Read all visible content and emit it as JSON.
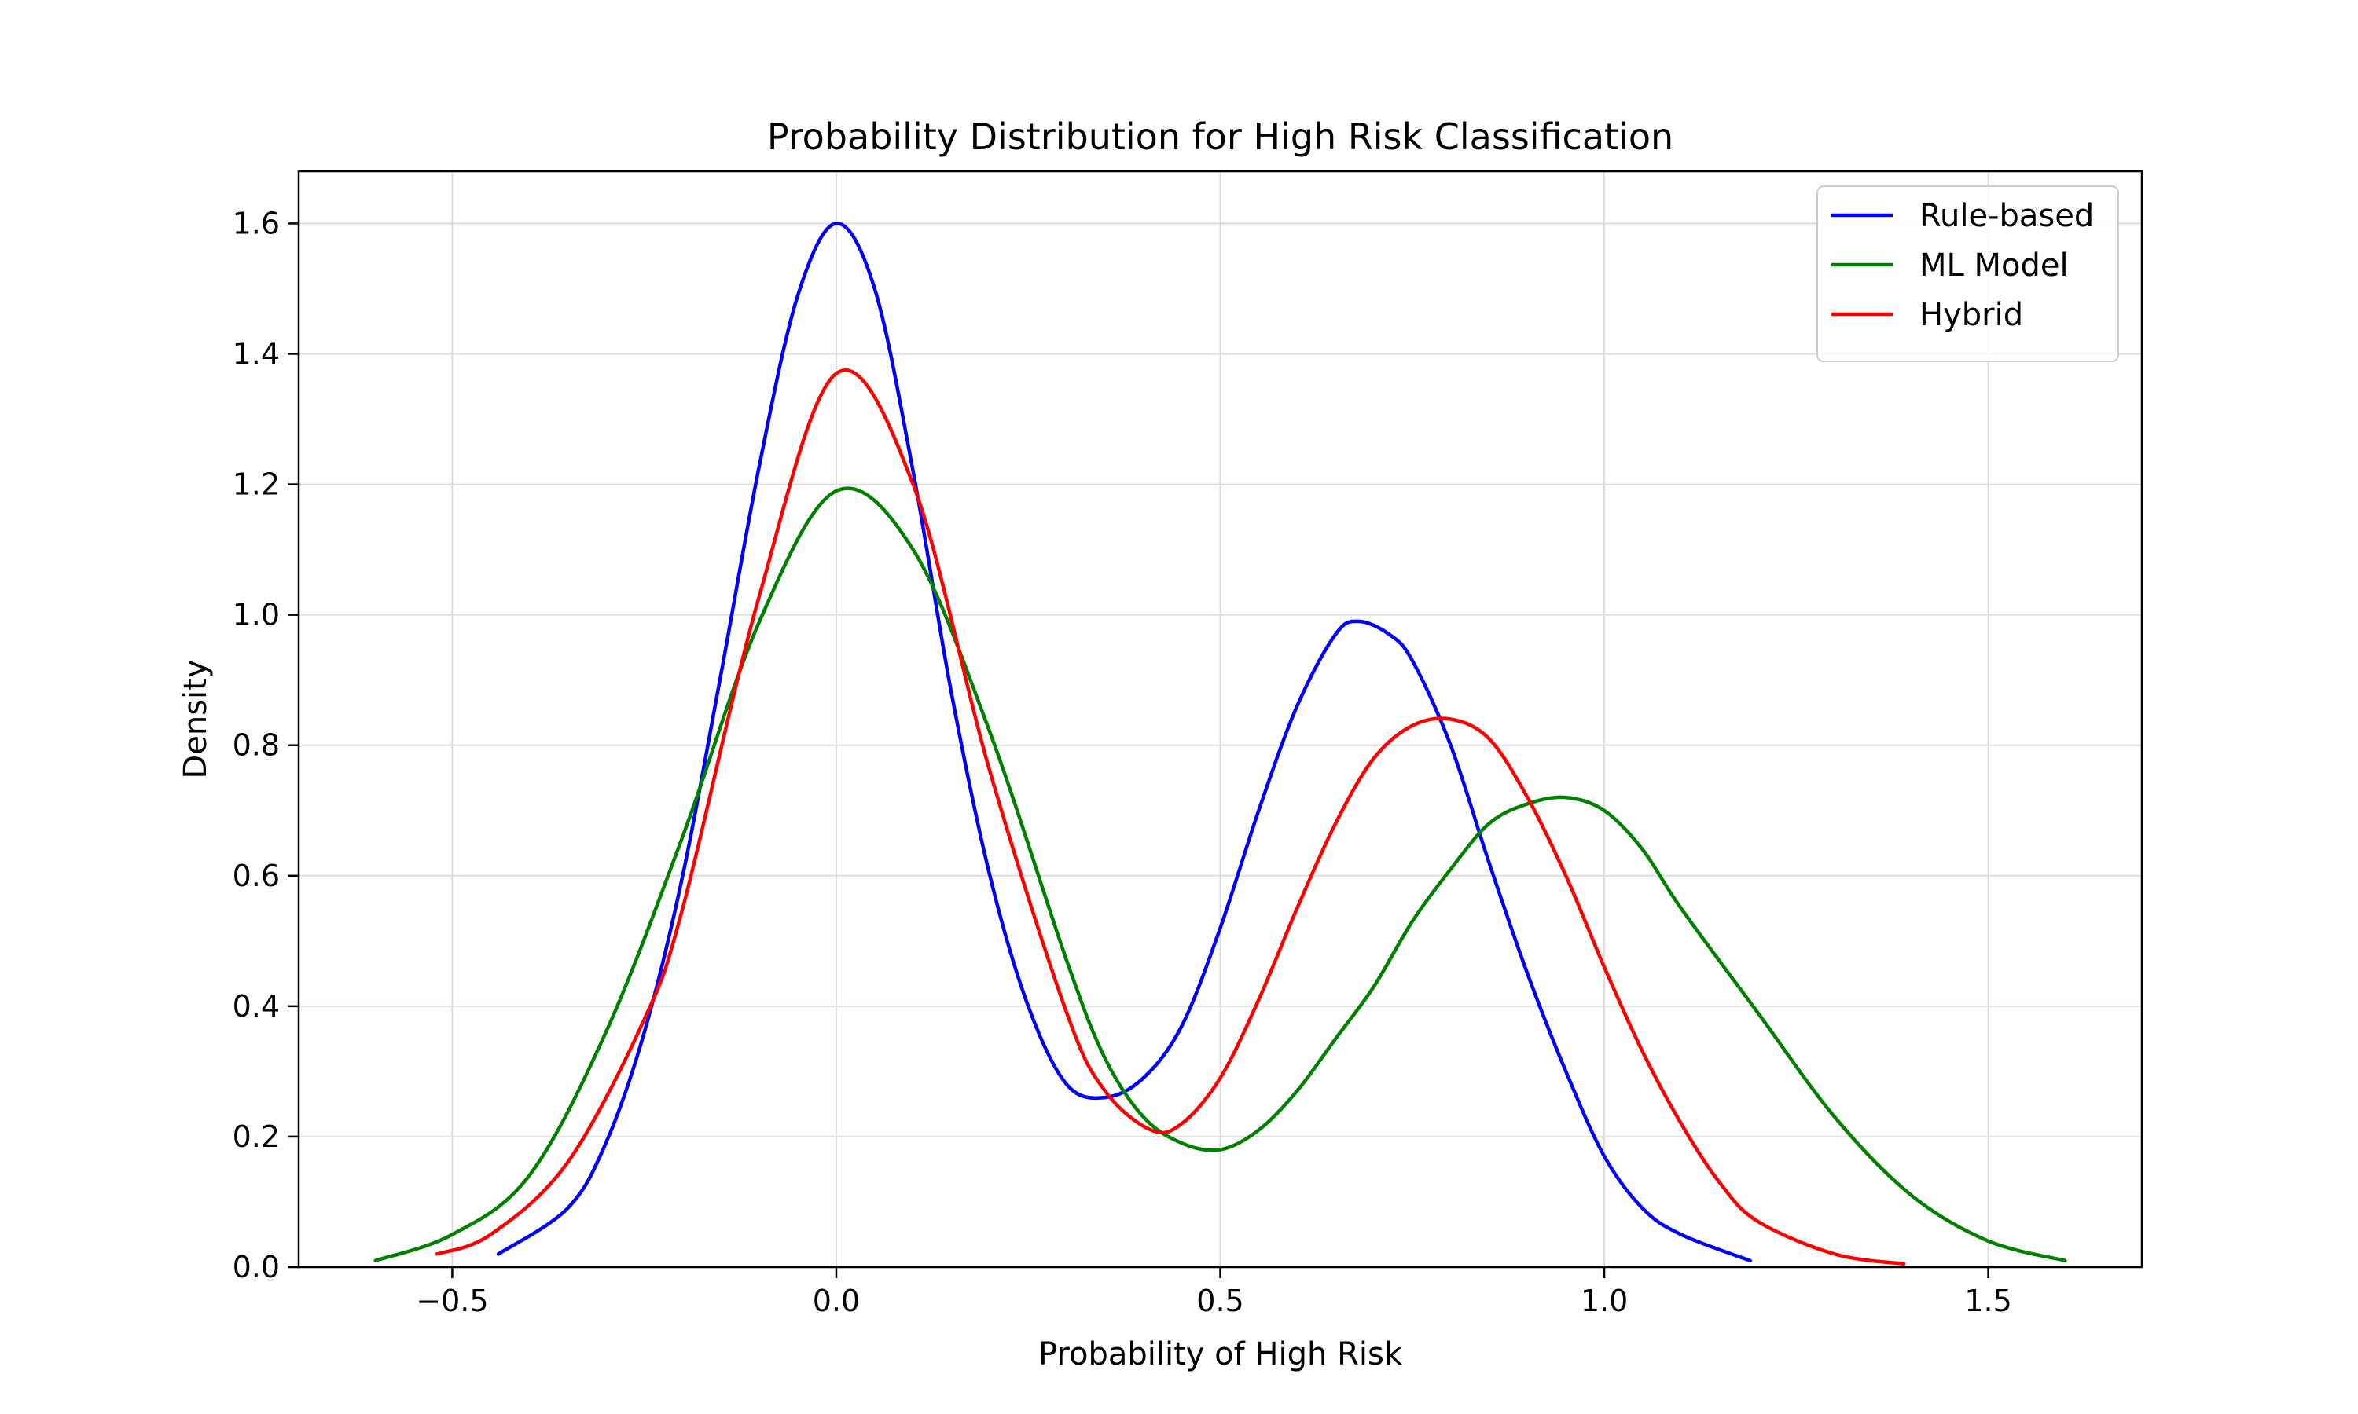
{
  "chart_data": {
    "type": "line",
    "title": "Probability Distribution for High Risk Classification",
    "xlabel": "Probability of High Risk",
    "ylabel": "Density",
    "xlim": [
      -0.7,
      1.7
    ],
    "ylim": [
      0.0,
      1.68
    ],
    "xticks": [
      -0.5,
      0.0,
      0.5,
      1.0,
      1.5
    ],
    "xtick_labels": [
      "−0.5",
      "0.0",
      "0.5",
      "1.0",
      "1.5"
    ],
    "yticks": [
      0.0,
      0.2,
      0.4,
      0.6,
      0.8,
      1.0,
      1.2,
      1.4,
      1.6
    ],
    "ytick_labels": [
      "0.0",
      "0.2",
      "0.4",
      "0.6",
      "0.8",
      "1.0",
      "1.2",
      "1.4",
      "1.6"
    ],
    "grid": true,
    "legend_position": "top-right",
    "series": [
      {
        "name": "Rule-based",
        "color": "#0000ff",
        "x": [
          -0.44,
          -0.35,
          -0.3,
          -0.25,
          -0.2,
          -0.15,
          -0.1,
          -0.05,
          0.0,
          0.05,
          0.1,
          0.15,
          0.2,
          0.25,
          0.3,
          0.35,
          0.4,
          0.45,
          0.5,
          0.55,
          0.6,
          0.65,
          0.68,
          0.72,
          0.75,
          0.8,
          0.85,
          0.9,
          0.95,
          1.0,
          1.05,
          1.1,
          1.19
        ],
        "y": [
          0.02,
          0.09,
          0.19,
          0.36,
          0.6,
          0.91,
          1.23,
          1.49,
          1.6,
          1.5,
          1.22,
          0.88,
          0.6,
          0.4,
          0.28,
          0.26,
          0.29,
          0.37,
          0.52,
          0.7,
          0.86,
          0.97,
          0.99,
          0.97,
          0.93,
          0.8,
          0.62,
          0.45,
          0.3,
          0.17,
          0.09,
          0.05,
          0.01
        ]
      },
      {
        "name": "ML Model",
        "color": "#008000",
        "x": [
          -0.6,
          -0.5,
          -0.4,
          -0.3,
          -0.2,
          -0.1,
          0.0,
          0.1,
          0.2,
          0.3,
          0.35,
          0.4,
          0.45,
          0.5,
          0.55,
          0.6,
          0.65,
          0.7,
          0.75,
          0.8,
          0.85,
          0.9,
          0.95,
          1.0,
          1.05,
          1.1,
          1.2,
          1.3,
          1.4,
          1.5,
          1.6
        ],
        "y": [
          0.01,
          0.05,
          0.14,
          0.36,
          0.66,
          0.99,
          1.19,
          1.1,
          0.82,
          0.47,
          0.32,
          0.23,
          0.19,
          0.18,
          0.21,
          0.27,
          0.35,
          0.43,
          0.53,
          0.61,
          0.68,
          0.71,
          0.72,
          0.7,
          0.64,
          0.55,
          0.39,
          0.23,
          0.11,
          0.04,
          0.01
        ]
      },
      {
        "name": "Hybrid",
        "color": "#ff0000",
        "x": [
          -0.52,
          -0.45,
          -0.35,
          -0.25,
          -0.2,
          -0.1,
          0.0,
          0.1,
          0.2,
          0.3,
          0.35,
          0.41,
          0.45,
          0.5,
          0.55,
          0.6,
          0.65,
          0.7,
          0.75,
          0.8,
          0.85,
          0.9,
          0.95,
          1.0,
          1.05,
          1.1,
          1.15,
          1.2,
          1.3,
          1.39
        ],
        "y": [
          0.02,
          0.05,
          0.16,
          0.38,
          0.55,
          1.03,
          1.37,
          1.2,
          0.76,
          0.39,
          0.27,
          0.21,
          0.22,
          0.29,
          0.41,
          0.55,
          0.68,
          0.78,
          0.83,
          0.84,
          0.81,
          0.72,
          0.6,
          0.46,
          0.33,
          0.22,
          0.13,
          0.07,
          0.02,
          0.005
        ]
      }
    ]
  }
}
